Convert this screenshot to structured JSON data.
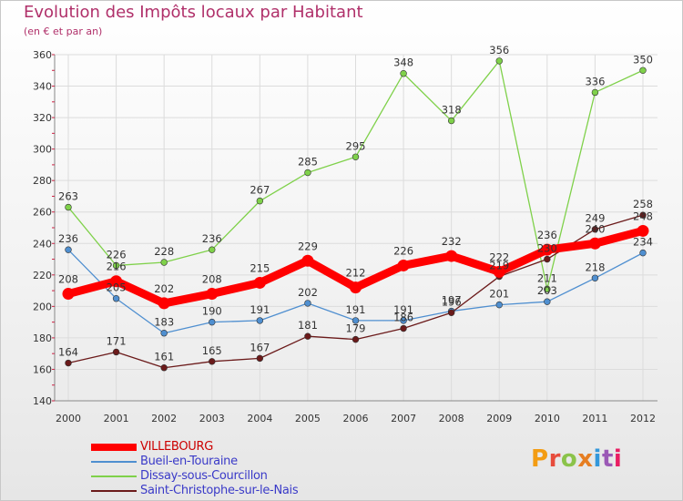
{
  "header": {
    "title": "Evolution des Impôts locaux par Habitant",
    "subtitle": "(en € et par an)"
  },
  "logo": {
    "text": "Proxiti",
    "colors": [
      "#f39c12",
      "#e74c3c",
      "#8bc34a",
      "#e67e22",
      "#3498db",
      "#9b59b6",
      "#e91e63"
    ]
  },
  "chart_data": {
    "type": "line",
    "x": [
      2000,
      2001,
      2002,
      2003,
      2004,
      2005,
      2006,
      2007,
      2008,
      2009,
      2010,
      2011,
      2012
    ],
    "ylim": [
      140,
      360
    ],
    "yticks": [
      140,
      160,
      180,
      200,
      220,
      240,
      260,
      280,
      300,
      320,
      340,
      360
    ],
    "grid": true,
    "legend_position": "bottom-left",
    "series": [
      {
        "name": "VILLEBOURG",
        "color": "#ff0000",
        "values": [
          208,
          216,
          202,
          208,
          215,
          229,
          212,
          226,
          232,
          222,
          236,
          240,
          248
        ]
      },
      {
        "name": "Bueil-en-Touraine",
        "color": "#4f8fd0",
        "values": [
          236,
          205,
          183,
          190,
          191,
          202,
          191,
          191,
          197,
          201,
          203,
          218,
          234
        ]
      },
      {
        "name": "Dissay-sous-Courcillon",
        "color": "#7fd14a",
        "values": [
          263,
          226,
          228,
          236,
          267,
          285,
          295,
          348,
          318,
          356,
          211,
          336,
          350
        ]
      },
      {
        "name": "Saint-Christophe-sur-le-Nais",
        "color": "#6b1a1a",
        "values": [
          164,
          171,
          161,
          165,
          167,
          181,
          179,
          186,
          196,
          219,
          230,
          249,
          258
        ]
      }
    ]
  }
}
